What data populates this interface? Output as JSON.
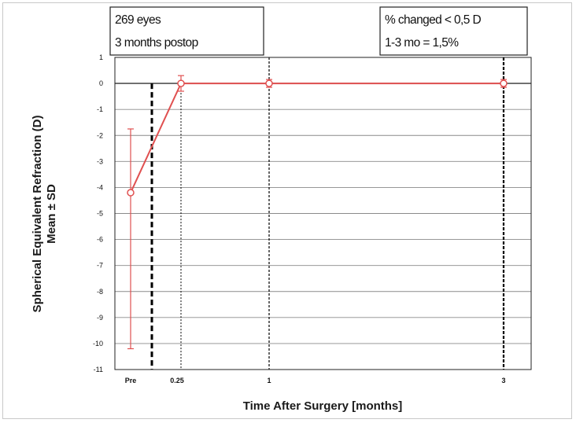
{
  "chart_data": {
    "type": "line",
    "xlabel": "Time After Surgery [months]",
    "ylabel_line1": "Spherical Equivalent Refraction (D)",
    "ylabel_line2": "Mean ± SD",
    "categories": [
      "Pre",
      "0.25",
      "1",
      "3"
    ],
    "y_ticks": [
      "1",
      "0",
      "-1",
      "-2",
      "-3",
      "-4",
      "-5",
      "-6",
      "-7",
      "-8",
      "-9",
      "-10",
      "-11"
    ],
    "ylim": [
      -11,
      1
    ],
    "grid": true,
    "series": [
      {
        "x": [
          "Pre",
          "0.25",
          "1",
          "3"
        ],
        "values": [
          -4.2,
          0.0,
          0.0,
          0.0
        ],
        "sd_low": [
          -10.2,
          -0.3,
          -0.15,
          -0.15
        ],
        "sd_high": [
          -1.75,
          0.3,
          0.15,
          0.15
        ],
        "color": "#e05050"
      }
    ],
    "annotation_left": [
      "269 eyes",
      "3 months postop"
    ],
    "annotation_right": [
      "% changed < 0,5 D",
      "1-3 mo = 1,5%"
    ]
  }
}
